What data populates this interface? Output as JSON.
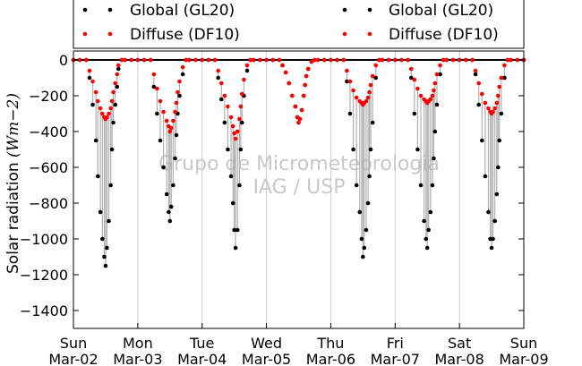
{
  "chart_data": {
    "type": "scatter",
    "title": "",
    "xlabel": "",
    "ylabel": "Solar radiation ($Wm−2$)",
    "ylabel_parts": {
      "text": "Solar radiation ",
      "unit": "(Wm−2)"
    },
    "x_unit": "day",
    "x_start": "2014-03-02",
    "xlim": [
      0,
      7
    ],
    "ylim": [
      -1500,
      50
    ],
    "yticks": [
      0,
      -200,
      -400,
      -600,
      -800,
      -1000,
      -1200,
      -1400
    ],
    "xticks": [
      {
        "x": 0,
        "day": "Sun",
        "date": "Mar-02"
      },
      {
        "x": 1,
        "day": "Mon",
        "date": "Mar-03"
      },
      {
        "x": 2,
        "day": "Tue",
        "date": "Mar-04"
      },
      {
        "x": 3,
        "day": "Wed",
        "date": "Mar-05"
      },
      {
        "x": 4,
        "day": "Thu",
        "date": "Mar-06"
      },
      {
        "x": 5,
        "day": "Fri",
        "date": "Mar-07"
      },
      {
        "x": 6,
        "day": "Sat",
        "date": "Mar-08"
      },
      {
        "x": 7,
        "day": "Sun",
        "date": "Mar-09"
      }
    ],
    "grid": {
      "x": true,
      "y": false
    },
    "zero_line": true,
    "legend": {
      "placement": "top"
    },
    "watermark": [
      "Grupo de Micrometeorologia",
      "IAG / USP"
    ],
    "series": [
      {
        "name": "Global (GL20)",
        "color": "#000000",
        "x": [
          0.0,
          0.1,
          0.2,
          0.25,
          0.3,
          0.35,
          0.38,
          0.42,
          0.45,
          0.48,
          0.5,
          0.52,
          0.55,
          0.58,
          0.6,
          0.62,
          0.65,
          0.68,
          0.7,
          0.75,
          0.8,
          0.9,
          1.0,
          1.1,
          1.2,
          1.25,
          1.3,
          1.35,
          1.4,
          1.45,
          1.48,
          1.5,
          1.52,
          1.55,
          1.58,
          1.6,
          1.62,
          1.65,
          1.7,
          1.75,
          1.8,
          1.9,
          2.0,
          2.1,
          2.2,
          2.25,
          2.3,
          2.35,
          2.4,
          2.45,
          2.48,
          2.5,
          2.52,
          2.55,
          2.58,
          2.6,
          2.62,
          2.65,
          2.7,
          2.75,
          2.8,
          2.9,
          3.0,
          3.1,
          3.2,
          3.25,
          3.3,
          3.35,
          3.4,
          3.45,
          3.48,
          3.5,
          3.52,
          3.55,
          3.58,
          3.6,
          3.62,
          3.65,
          3.7,
          3.75,
          3.8,
          3.9,
          4.0,
          4.1,
          4.2,
          4.25,
          4.3,
          4.35,
          4.4,
          4.45,
          4.48,
          4.5,
          4.52,
          4.55,
          4.58,
          4.6,
          4.62,
          4.65,
          4.7,
          4.75,
          4.8,
          4.9,
          5.0,
          5.1,
          5.2,
          5.25,
          5.3,
          5.35,
          5.4,
          5.45,
          5.48,
          5.5,
          5.52,
          5.55,
          5.58,
          5.6,
          5.62,
          5.65,
          5.7,
          5.75,
          5.8,
          5.9,
          6.0,
          6.1,
          6.2,
          6.25,
          6.3,
          6.35,
          6.4,
          6.45,
          6.48,
          6.5,
          6.52,
          6.55,
          6.58,
          6.6,
          6.62,
          6.65,
          6.7,
          6.75,
          6.8,
          6.9,
          7.0
        ],
        "y": [
          0,
          0,
          0,
          -100,
          -250,
          -450,
          -650,
          -850,
          -1000,
          -1100,
          -1150,
          -1050,
          -900,
          -700,
          -500,
          -350,
          -250,
          -150,
          -50,
          0,
          0,
          0,
          0,
          0,
          0,
          -150,
          -300,
          -450,
          -600,
          -750,
          -850,
          -900,
          -820,
          -700,
          -550,
          -420,
          -300,
          -200,
          -80,
          0,
          0,
          0,
          0,
          0,
          0,
          -100,
          -220,
          -350,
          -500,
          -650,
          -800,
          -950,
          -1050,
          -950,
          -700,
          -500,
          -350,
          -200,
          -60,
          0,
          0,
          0,
          0,
          0,
          0,
          -30,
          -70,
          -130,
          -200,
          -260,
          -320,
          -350,
          -330,
          -280,
          -200,
          -140,
          -90,
          -50,
          -10,
          0,
          0,
          0,
          0,
          0,
          0,
          -120,
          -300,
          -500,
          -700,
          -850,
          -1000,
          -1100,
          -1050,
          -950,
          -800,
          -650,
          -500,
          -350,
          -100,
          0,
          0,
          0,
          0,
          0,
          0,
          -100,
          -300,
          -500,
          -700,
          -900,
          -1000,
          -1050,
          -950,
          -850,
          -700,
          -550,
          -400,
          -250,
          -80,
          0,
          0,
          0,
          0,
          0,
          0,
          -80,
          -250,
          -450,
          -650,
          -850,
          -1000,
          -1050,
          -1000,
          -900,
          -750,
          -600,
          -450,
          -300,
          -100,
          0,
          0,
          0,
          0
        ]
      },
      {
        "name": "Diffuse (DF10)",
        "color": "#ff0000",
        "x": [
          0.0,
          0.1,
          0.2,
          0.25,
          0.3,
          0.35,
          0.38,
          0.42,
          0.45,
          0.48,
          0.5,
          0.52,
          0.55,
          0.58,
          0.6,
          0.62,
          0.65,
          0.68,
          0.7,
          0.75,
          0.8,
          0.9,
          1.0,
          1.1,
          1.2,
          1.25,
          1.3,
          1.35,
          1.4,
          1.45,
          1.48,
          1.5,
          1.52,
          1.55,
          1.58,
          1.6,
          1.62,
          1.65,
          1.7,
          1.75,
          1.8,
          1.9,
          2.0,
          2.1,
          2.2,
          2.25,
          2.3,
          2.35,
          2.4,
          2.45,
          2.48,
          2.5,
          2.52,
          2.55,
          2.58,
          2.6,
          2.62,
          2.65,
          2.7,
          2.75,
          2.8,
          2.9,
          3.0,
          3.1,
          3.2,
          3.25,
          3.3,
          3.35,
          3.4,
          3.45,
          3.48,
          3.5,
          3.52,
          3.55,
          3.58,
          3.6,
          3.62,
          3.65,
          3.7,
          3.75,
          3.8,
          3.9,
          4.0,
          4.1,
          4.2,
          4.25,
          4.3,
          4.35,
          4.4,
          4.45,
          4.48,
          4.5,
          4.52,
          4.55,
          4.58,
          4.6,
          4.62,
          4.65,
          4.7,
          4.75,
          4.8,
          4.9,
          5.0,
          5.1,
          5.2,
          5.25,
          5.3,
          5.35,
          5.4,
          5.45,
          5.48,
          5.5,
          5.52,
          5.55,
          5.58,
          5.6,
          5.62,
          5.65,
          5.7,
          5.75,
          5.8,
          5.9,
          6.0,
          6.1,
          6.2,
          6.25,
          6.3,
          6.35,
          6.4,
          6.45,
          6.48,
          6.5,
          6.52,
          6.55,
          6.58,
          6.6,
          6.62,
          6.65,
          6.7,
          6.75,
          6.8,
          6.9,
          7.0
        ],
        "y": [
          0,
          0,
          0,
          -60,
          -120,
          -180,
          -230,
          -270,
          -300,
          -320,
          -330,
          -320,
          -300,
          -270,
          -230,
          -180,
          -130,
          -80,
          -30,
          0,
          0,
          0,
          0,
          0,
          0,
          -80,
          -160,
          -230,
          -290,
          -340,
          -370,
          -400,
          -380,
          -340,
          -290,
          -240,
          -180,
          -120,
          -40,
          0,
          0,
          0,
          0,
          0,
          0,
          -60,
          -130,
          -200,
          -260,
          -320,
          -370,
          -410,
          -440,
          -400,
          -330,
          -260,
          -190,
          -110,
          -30,
          0,
          0,
          0,
          0,
          0,
          0,
          -30,
          -70,
          -130,
          -200,
          -260,
          -320,
          -350,
          -330,
          -280,
          -200,
          -140,
          -90,
          -50,
          -10,
          0,
          0,
          0,
          0,
          0,
          0,
          -60,
          -120,
          -170,
          -210,
          -230,
          -240,
          -250,
          -240,
          -230,
          -210,
          -180,
          -140,
          -90,
          -30,
          0,
          0,
          0,
          0,
          0,
          0,
          -50,
          -110,
          -160,
          -200,
          -220,
          -230,
          -240,
          -230,
          -220,
          -200,
          -170,
          -130,
          -80,
          -30,
          0,
          0,
          0,
          0,
          0,
          0,
          -60,
          -130,
          -190,
          -240,
          -270,
          -290,
          -300,
          -290,
          -270,
          -240,
          -200,
          -150,
          -100,
          -30,
          0,
          0,
          0,
          0
        ]
      }
    ]
  }
}
